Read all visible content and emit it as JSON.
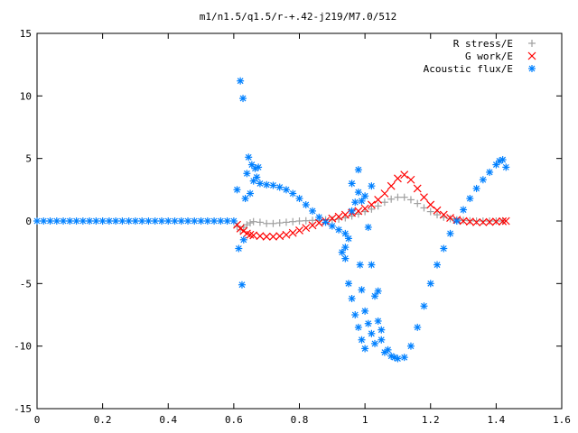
{
  "chart_data": {
    "type": "scatter",
    "title": "m1/n1.5/q1.5/r-+.42-j219/M7.0/512",
    "xlabel": "",
    "ylabel": "",
    "xlim": [
      0,
      1.6
    ],
    "ylim": [
      -15,
      15
    ],
    "x_ticks": [
      "0",
      "0.2",
      "0.4",
      "0.6",
      "0.8",
      "1",
      "1.2",
      "1.4",
      "1.6"
    ],
    "y_ticks": [
      "15",
      "10",
      "5",
      "0",
      "-5",
      "-10",
      "-15"
    ],
    "legend_position": "top-right",
    "grid": false,
    "series": [
      {
        "name": "R stress/E",
        "marker": "+",
        "color": "#a0a0a0",
        "points": [
          [
            0.61,
            -0.4
          ],
          [
            0.62,
            -0.7
          ],
          [
            0.63,
            -0.5
          ],
          [
            0.64,
            -0.3
          ],
          [
            0.65,
            -0.15
          ],
          [
            0.66,
            -0.05
          ],
          [
            0.68,
            -0.1
          ],
          [
            0.7,
            -0.2
          ],
          [
            0.72,
            -0.2
          ],
          [
            0.74,
            -0.15
          ],
          [
            0.76,
            -0.1
          ],
          [
            0.78,
            -0.05
          ],
          [
            0.8,
            0.0
          ],
          [
            0.82,
            0.02
          ],
          [
            0.84,
            0.05
          ],
          [
            0.86,
            0.05
          ],
          [
            0.88,
            0.1
          ],
          [
            0.9,
            0.1
          ],
          [
            0.92,
            0.15
          ],
          [
            0.94,
            0.25
          ],
          [
            0.96,
            0.4
          ],
          [
            0.98,
            0.55
          ],
          [
            1.0,
            0.75
          ],
          [
            1.02,
            0.95
          ],
          [
            1.04,
            1.2
          ],
          [
            1.06,
            1.5
          ],
          [
            1.08,
            1.75
          ],
          [
            1.1,
            1.9
          ],
          [
            1.12,
            1.9
          ],
          [
            1.14,
            1.7
          ],
          [
            1.16,
            1.4
          ],
          [
            1.18,
            1.05
          ],
          [
            1.2,
            0.75
          ],
          [
            1.22,
            0.5
          ],
          [
            1.24,
            0.3
          ],
          [
            1.26,
            0.18
          ],
          [
            1.28,
            0.1
          ],
          [
            1.3,
            0.05
          ],
          [
            1.32,
            0.02
          ],
          [
            1.34,
            0.0
          ],
          [
            1.36,
            0.0
          ],
          [
            1.38,
            0.0
          ],
          [
            1.4,
            0.0
          ],
          [
            1.42,
            0.0
          ]
        ]
      },
      {
        "name": "G work/E",
        "marker": "x",
        "color": "#ff0000",
        "points": [
          [
            0.61,
            -0.3
          ],
          [
            0.62,
            -0.6
          ],
          [
            0.63,
            -0.8
          ],
          [
            0.64,
            -1.0
          ],
          [
            0.65,
            -1.1
          ],
          [
            0.66,
            -1.15
          ],
          [
            0.68,
            -1.2
          ],
          [
            0.7,
            -1.25
          ],
          [
            0.72,
            -1.25
          ],
          [
            0.74,
            -1.2
          ],
          [
            0.76,
            -1.1
          ],
          [
            0.78,
            -0.95
          ],
          [
            0.8,
            -0.75
          ],
          [
            0.82,
            -0.55
          ],
          [
            0.84,
            -0.35
          ],
          [
            0.86,
            -0.15
          ],
          [
            0.88,
            0.0
          ],
          [
            0.9,
            0.2
          ],
          [
            0.92,
            0.35
          ],
          [
            0.94,
            0.5
          ],
          [
            0.96,
            0.65
          ],
          [
            0.98,
            0.8
          ],
          [
            1.0,
            1.0
          ],
          [
            1.02,
            1.3
          ],
          [
            1.04,
            1.7
          ],
          [
            1.06,
            2.2
          ],
          [
            1.08,
            2.8
          ],
          [
            1.1,
            3.4
          ],
          [
            1.12,
            3.7
          ],
          [
            1.14,
            3.3
          ],
          [
            1.16,
            2.6
          ],
          [
            1.18,
            1.9
          ],
          [
            1.2,
            1.3
          ],
          [
            1.22,
            0.85
          ],
          [
            1.24,
            0.5
          ],
          [
            1.26,
            0.25
          ],
          [
            1.28,
            0.1
          ],
          [
            1.3,
            0.0
          ],
          [
            1.32,
            -0.05
          ],
          [
            1.34,
            -0.1
          ],
          [
            1.36,
            -0.1
          ],
          [
            1.38,
            -0.08
          ],
          [
            1.4,
            -0.05
          ],
          [
            1.42,
            -0.02
          ],
          [
            1.43,
            0.0
          ]
        ]
      },
      {
        "name": "Acoustic flux/E",
        "marker": "*",
        "color": "#0080ff",
        "points": [
          [
            0.0,
            0
          ],
          [
            0.02,
            0
          ],
          [
            0.04,
            0
          ],
          [
            0.06,
            0
          ],
          [
            0.08,
            0
          ],
          [
            0.1,
            0
          ],
          [
            0.12,
            0
          ],
          [
            0.14,
            0
          ],
          [
            0.16,
            0
          ],
          [
            0.18,
            0
          ],
          [
            0.2,
            0
          ],
          [
            0.22,
            0
          ],
          [
            0.24,
            0
          ],
          [
            0.26,
            0
          ],
          [
            0.28,
            0
          ],
          [
            0.3,
            0
          ],
          [
            0.32,
            0
          ],
          [
            0.34,
            0
          ],
          [
            0.36,
            0
          ],
          [
            0.38,
            0
          ],
          [
            0.4,
            0
          ],
          [
            0.42,
            0
          ],
          [
            0.44,
            0
          ],
          [
            0.46,
            0
          ],
          [
            0.48,
            0
          ],
          [
            0.5,
            0
          ],
          [
            0.52,
            0
          ],
          [
            0.54,
            0
          ],
          [
            0.56,
            0
          ],
          [
            0.58,
            0
          ],
          [
            0.6,
            0
          ],
          [
            0.61,
            2.5
          ],
          [
            0.615,
            -2.2
          ],
          [
            0.62,
            11.2
          ],
          [
            0.625,
            -5.1
          ],
          [
            0.628,
            9.8
          ],
          [
            0.63,
            -1.5
          ],
          [
            0.635,
            1.8
          ],
          [
            0.64,
            3.8
          ],
          [
            0.645,
            5.1
          ],
          [
            0.65,
            2.2
          ],
          [
            0.655,
            4.5
          ],
          [
            0.66,
            3.2
          ],
          [
            0.665,
            4.2
          ],
          [
            0.67,
            3.5
          ],
          [
            0.675,
            4.3
          ],
          [
            0.68,
            3.0
          ],
          [
            0.7,
            2.9
          ],
          [
            0.72,
            2.85
          ],
          [
            0.74,
            2.7
          ],
          [
            0.76,
            2.5
          ],
          [
            0.78,
            2.2
          ],
          [
            0.8,
            1.8
          ],
          [
            0.82,
            1.3
          ],
          [
            0.84,
            0.8
          ],
          [
            0.86,
            0.3
          ],
          [
            0.88,
            -0.1
          ],
          [
            0.9,
            -0.4
          ],
          [
            0.92,
            -0.7
          ],
          [
            0.94,
            -1.0
          ],
          [
            0.95,
            -1.4
          ],
          [
            0.93,
            -2.5
          ],
          [
            0.94,
            -3.0
          ],
          [
            0.95,
            -5.0
          ],
          [
            0.96,
            -6.2
          ],
          [
            0.97,
            -7.5
          ],
          [
            0.98,
            -8.5
          ],
          [
            0.99,
            -9.5
          ],
          [
            1.0,
            -10.2
          ],
          [
            0.96,
            0.8
          ],
          [
            0.97,
            1.5
          ],
          [
            0.98,
            2.3
          ],
          [
            0.99,
            1.6
          ],
          [
            1.0,
            2.0
          ],
          [
            1.01,
            -0.5
          ],
          [
            1.02,
            -3.5
          ],
          [
            1.03,
            -6.0
          ],
          [
            1.04,
            -8.0
          ],
          [
            1.05,
            -9.5
          ],
          [
            1.06,
            -10.5
          ],
          [
            1.07,
            -10.3
          ],
          [
            1.08,
            -10.8
          ],
          [
            1.09,
            -10.9
          ],
          [
            1.1,
            -11.0
          ],
          [
            0.985,
            -3.5
          ],
          [
            0.99,
            -5.5
          ],
          [
            1.0,
            -7.2
          ],
          [
            1.01,
            -8.2
          ],
          [
            1.02,
            -9.0
          ],
          [
            1.03,
            -9.8
          ],
          [
            1.04,
            -5.6
          ],
          [
            1.05,
            -8.7
          ],
          [
            0.94,
            -2.1
          ],
          [
            0.96,
            3.0
          ],
          [
            0.98,
            4.1
          ],
          [
            1.02,
            2.8
          ],
          [
            1.12,
            -10.9
          ],
          [
            1.14,
            -10.0
          ],
          [
            1.16,
            -8.5
          ],
          [
            1.18,
            -6.8
          ],
          [
            1.2,
            -5.0
          ],
          [
            1.22,
            -3.5
          ],
          [
            1.24,
            -2.2
          ],
          [
            1.26,
            -1.0
          ],
          [
            1.28,
            0.0
          ],
          [
            1.3,
            0.9
          ],
          [
            1.32,
            1.8
          ],
          [
            1.34,
            2.6
          ],
          [
            1.36,
            3.3
          ],
          [
            1.38,
            3.9
          ],
          [
            1.4,
            4.5
          ],
          [
            1.41,
            4.8
          ],
          [
            1.42,
            4.9
          ],
          [
            1.43,
            4.3
          ]
        ]
      }
    ]
  }
}
